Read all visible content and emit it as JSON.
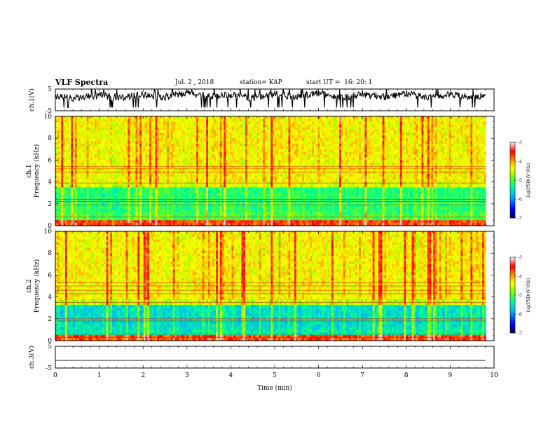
{
  "header": {
    "title": "VLF Spectra",
    "date": "Jul. 2 , 2018",
    "station": "station= KAP",
    "start": "start UT =  16: 20: 1"
  },
  "chart_data": [
    {
      "type": "line",
      "panel": "ch1-waveform",
      "ylabel": "ch.1(V)",
      "ylim": [
        -5,
        5
      ],
      "yticks": [
        5,
        -5
      ],
      "x": [
        0.0,
        0.5,
        1.0,
        1.5,
        2.0,
        2.5,
        3.0,
        3.5,
        4.0,
        4.5,
        5.0,
        5.5,
        6.0,
        6.5,
        7.0,
        7.5,
        8.0,
        8.5,
        9.0,
        9.5,
        9.8
      ],
      "y": [
        1.5,
        0.8,
        2.0,
        1.0,
        2.5,
        1.2,
        3.0,
        1.8,
        2.2,
        0.9,
        2.8,
        1.5,
        3.2,
        1.0,
        2.6,
        1.4,
        3.0,
        0.8,
        2.4,
        1.6,
        1.8
      ]
    },
    {
      "type": "heatmap",
      "panel": "ch1-spectrogram",
      "ylabel": "ch.1\nFrequency (kHz)",
      "ylim": [
        0,
        10
      ],
      "yticks": [
        "0",
        "2",
        "4",
        "6",
        "8",
        "10"
      ],
      "colorbar": {
        "label": "log(PSD)(V²/Hz)",
        "range": [
          -7,
          -3
        ],
        "ticks": [
          "-3",
          "-4",
          "-5",
          "-6",
          "-7"
        ]
      }
    },
    {
      "type": "heatmap",
      "panel": "ch2-spectrogram",
      "ylabel": "ch.2\nFrequency (kHz)",
      "ylim": [
        0,
        10
      ],
      "yticks": [
        "0",
        "2",
        "4",
        "6",
        "8",
        "10"
      ],
      "colorbar": {
        "label": "log(PSD)(V²/Hz)",
        "range": [
          -7,
          -3
        ],
        "ticks": [
          "-3",
          "-4",
          "-5",
          "-6",
          "-7"
        ]
      }
    },
    {
      "type": "line",
      "panel": "ch3-waveform",
      "ylabel": "ch.3(V)",
      "ylim": [
        -5,
        5
      ],
      "yticks": [
        "5",
        "-5"
      ],
      "x": [
        0,
        9.8
      ],
      "y": [
        -1.5,
        -1.5
      ]
    }
  ],
  "xaxis": {
    "label": "Time (min)",
    "range": [
      0,
      10
    ],
    "ticks": [
      "0",
      "1",
      "2",
      "3",
      "4",
      "5",
      "6",
      "7",
      "8",
      "9",
      "10"
    ]
  },
  "colors": {
    "scale": [
      "#000080",
      "#0000ff",
      "#00bfff",
      "#00ff80",
      "#80ff00",
      "#ffff00",
      "#ff8000",
      "#ff0000",
      "#ff9999",
      "#ffffff"
    ]
  }
}
